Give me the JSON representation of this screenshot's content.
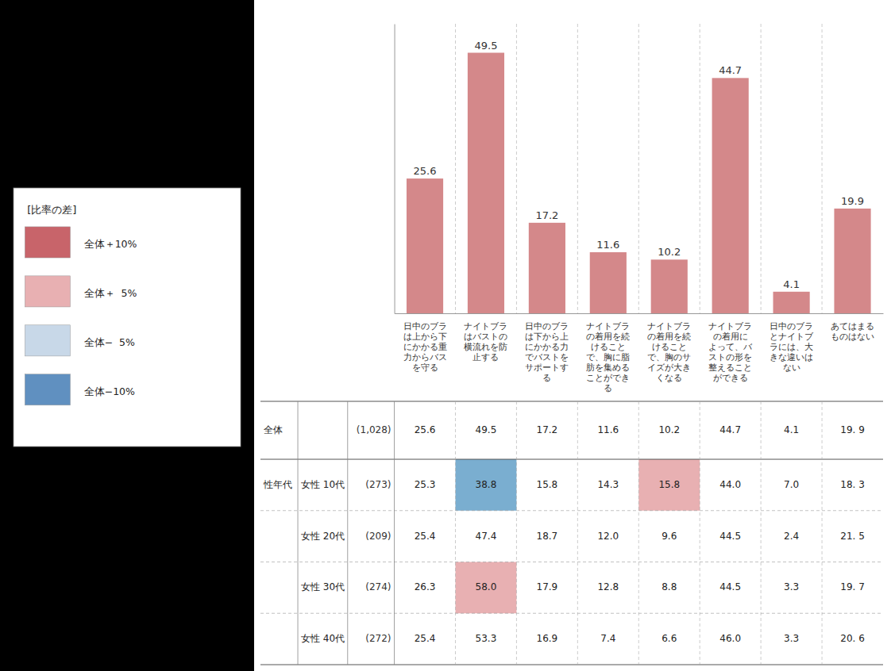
{
  "chart_data": [
    {
      "type": "bar",
      "categories": [
        "日中のブラ\nは上から下\nにかかる重\n力からバス\nを守る",
        "ナイトブラ\nはバストの\n横流れを防\n止する",
        "日中のブラ\nは下から上\nにかかる力\nでバストを\nサポートす\nる",
        "ナイトブラ\nの着用を続\nけること\nで、胸に脂\n肪を集める\nことができ\nる",
        "ナイトブラ\nの着用を続\nけること\nで、胸のサ\nイズが大き\nくなる",
        "ナイトブラ\nの着用に\nよって、バ\nストの形を\n整えること\nができる",
        "日中のブラ\nとナイトブ\nラには、大\nきな違いは\nない",
        "あてはまる\nものはない"
      ],
      "values": [
        25.6,
        49.5,
        17.2,
        11.6,
        10.2,
        44.7,
        4.1,
        19.9
      ],
      "color": "#d4888a",
      "ylim": [
        0,
        55
      ],
      "data_labels": true,
      "tick_labels": "x",
      "grid": false
    },
    {
      "type": "table",
      "legend_title": "[比率の差]",
      "legend_items": [
        {
          "label": "全体＋10%",
          "color": "#c8646a"
        },
        {
          "label": "全体＋  5%",
          "color": "#e8b0b2"
        },
        {
          "label": "全体−  5%",
          "color": "#c8d8e8"
        },
        {
          "label": "全体−10%",
          "color": "#6090c0"
        }
      ],
      "rows": [
        {
          "group": "全体",
          "n": "(1,028)",
          "cells": [
            "25.6",
            "49.5",
            "17.2",
            "11.6",
            "10.2",
            "44.7",
            "4.1",
            "19. 9"
          ],
          "highlights": []
        },
        {
          "group": "性年代",
          "label": "女性 10代",
          "n": "(273)",
          "cells": [
            "25.3",
            "38.8",
            "15.8",
            "14.3",
            "15.8",
            "44.0",
            "7.0",
            "18. 3"
          ],
          "highlights": [
            {
              "col": 1,
              "color": "#7aaed0"
            },
            {
              "col": 4,
              "color": "#e8b0b2"
            }
          ]
        },
        {
          "label": "女性 20代",
          "n": "(209)",
          "cells": [
            "25.4",
            "47.4",
            "18.7",
            "12.0",
            "9.6",
            "44.5",
            "2.4",
            "21. 5"
          ],
          "highlights": []
        },
        {
          "label": "女性 30代",
          "n": "(274)",
          "cells": [
            "26.3",
            "58.0",
            "17.9",
            "12.8",
            "8.8",
            "44.5",
            "3.3",
            "19. 7"
          ],
          "highlights": [
            {
              "col": 1,
              "color": "#e8b0b2"
            }
          ]
        },
        {
          "label": "女性 40代",
          "n": "(272)",
          "cells": [
            "25.4",
            "53.3",
            "16.9",
            "7.4",
            "6.6",
            "46.0",
            "3.3",
            "20. 6"
          ],
          "highlights": []
        }
      ]
    }
  ]
}
